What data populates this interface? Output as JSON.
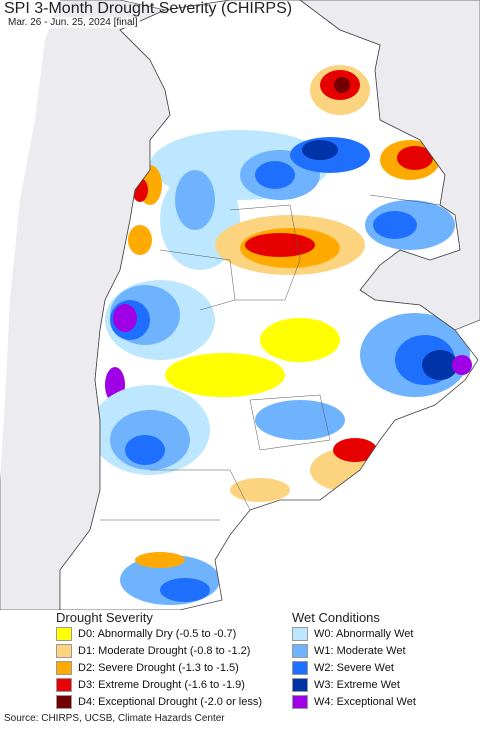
{
  "map": {
    "title": "SPI 3-Month Drought Severity (CHIRPS)",
    "subtitle": "Mar. 26 - Jun. 25, 2024 [final]"
  },
  "legend": {
    "drought": {
      "heading": "Drought Severity",
      "items": [
        {
          "label": "D0: Abnormally Dry (-0.5 to -0.7)",
          "color": "#ffff00"
        },
        {
          "label": "D1: Moderate Drought (-0.8 to -1.2)",
          "color": "#fcd37f"
        },
        {
          "label": "D2: Severe Drought (-1.3 to -1.5)",
          "color": "#ffaa00"
        },
        {
          "label": "D3: Extreme Drought (-1.6 to -1.9)",
          "color": "#e60000"
        },
        {
          "label": "D4: Exceptional Drought (-2.0 or less)",
          "color": "#730000"
        }
      ]
    },
    "wet": {
      "heading": "Wet Conditions",
      "items": [
        {
          "label": "W0: Abnormally Wet",
          "color": "#bde7ff"
        },
        {
          "label": "W1: Moderate Wet",
          "color": "#6fb3ff"
        },
        {
          "label": "W2: Severe Wet",
          "color": "#1f6fff"
        },
        {
          "label": "W3: Extreme Wet",
          "color": "#0033a8"
        },
        {
          "label": "W4: Exceptional Wet",
          "color": "#a000e6"
        }
      ]
    }
  },
  "source": "Source: CHIRPS, UCSB, Climate Hazards Center"
}
